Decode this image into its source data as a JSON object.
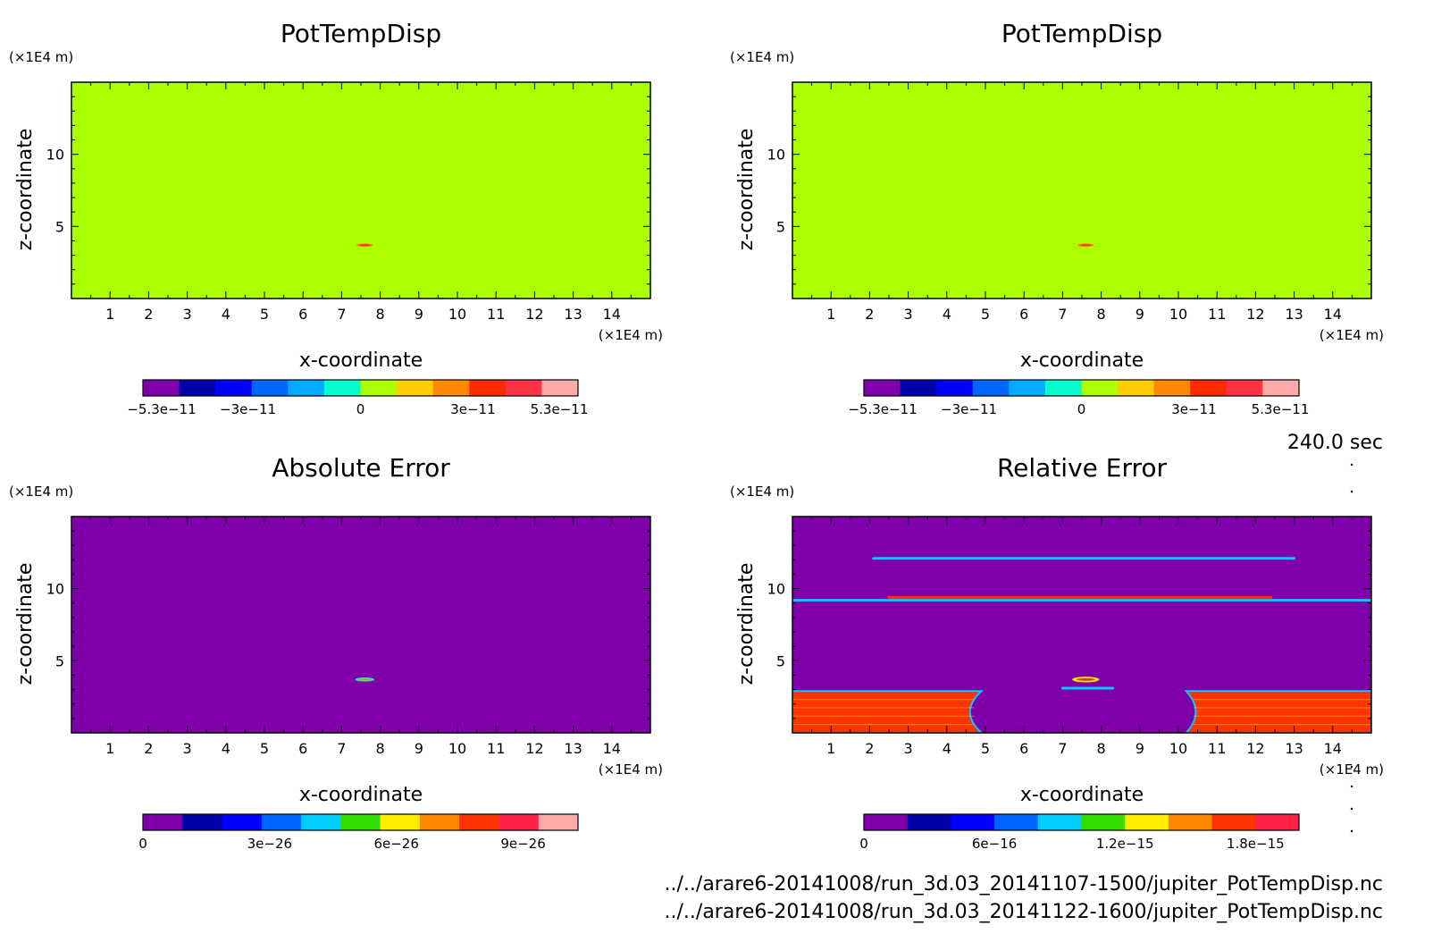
{
  "timestamp": "240.0 sec",
  "files": [
    "../../arare6-20141008/run_3d.03_20141107-1500/jupiter_PotTempDisp.nc",
    "../../arare6-20141008/run_3d.03_20141122-1600/jupiter_PotTempDisp.nc"
  ],
  "chart_data": [
    {
      "type": "heatmap",
      "title": "PotTempDisp",
      "xlabel": "x-coordinate",
      "ylabel": "z-coordinate",
      "x_unit": "(×1E4 m)",
      "y_unit": "(×1E4 m)",
      "xlim": [
        0,
        15
      ],
      "ylim": [
        0,
        15
      ],
      "x_ticks": [
        1,
        2,
        3,
        4,
        5,
        6,
        7,
        8,
        9,
        10,
        11,
        12,
        13,
        14
      ],
      "y_ticks": [
        5,
        10
      ],
      "background": "#aaff00",
      "features": [
        {
          "kind": "blob",
          "x": 7.6,
          "z": 3.7,
          "rx": 0.22,
          "rz": 0.12,
          "outer": "#ff8800",
          "inner": "#ff2a00"
        }
      ],
      "colorbar": {
        "colors": [
          "#7f00aa",
          "#0000aa",
          "#0000ff",
          "#0066ff",
          "#00aaff",
          "#00ffcc",
          "#aaff00",
          "#ffcc00",
          "#ff8800",
          "#ff2a00",
          "#ff3344",
          "#ffaaaa"
        ],
        "ticks": [
          {
            "value": -5.3e-11,
            "label": "−5.3e−11"
          },
          {
            "value": -3e-11,
            "label": "−3e−11"
          },
          {
            "value": 0,
            "label": "0"
          },
          {
            "value": 3e-11,
            "label": "3e−11"
          },
          {
            "value": 5.3e-11,
            "label": "5.3e−11"
          }
        ],
        "range": [
          -5.8e-11,
          5.8e-11
        ]
      }
    },
    {
      "type": "heatmap",
      "title": "PotTempDisp",
      "xlabel": "x-coordinate",
      "ylabel": "z-coordinate",
      "x_unit": "(×1E4 m)",
      "y_unit": "(×1E4 m)",
      "xlim": [
        0,
        15
      ],
      "ylim": [
        0,
        15
      ],
      "x_ticks": [
        1,
        2,
        3,
        4,
        5,
        6,
        7,
        8,
        9,
        10,
        11,
        12,
        13,
        14
      ],
      "y_ticks": [
        5,
        10
      ],
      "background": "#aaff00",
      "features": [
        {
          "kind": "blob",
          "x": 7.6,
          "z": 3.7,
          "rx": 0.22,
          "rz": 0.12,
          "outer": "#ff8800",
          "inner": "#ff2a00"
        }
      ],
      "colorbar": {
        "colors": [
          "#7f00aa",
          "#0000aa",
          "#0000ff",
          "#0066ff",
          "#00aaff",
          "#00ffcc",
          "#aaff00",
          "#ffcc00",
          "#ff8800",
          "#ff2a00",
          "#ff3344",
          "#ffaaaa"
        ],
        "ticks": [
          {
            "value": -5.3e-11,
            "label": "−5.3e−11"
          },
          {
            "value": -3e-11,
            "label": "−3e−11"
          },
          {
            "value": 0,
            "label": "0"
          },
          {
            "value": 3e-11,
            "label": "3e−11"
          },
          {
            "value": 5.3e-11,
            "label": "5.3e−11"
          }
        ],
        "range": [
          -5.8e-11,
          5.8e-11
        ]
      }
    },
    {
      "type": "heatmap",
      "title": "Absolute Error",
      "xlabel": "x-coordinate",
      "ylabel": "z-coordinate",
      "x_unit": "(×1E4 m)",
      "y_unit": "(×1E4 m)",
      "xlim": [
        0,
        15
      ],
      "ylim": [
        0,
        15
      ],
      "x_ticks": [
        1,
        2,
        3,
        4,
        5,
        6,
        7,
        8,
        9,
        10,
        11,
        12,
        13,
        14
      ],
      "y_ticks": [
        5,
        10
      ],
      "background": "#7f00aa",
      "features": [
        {
          "kind": "blob",
          "x": 7.6,
          "z": 3.7,
          "rx": 0.25,
          "rz": 0.14,
          "outer": "#00ffcc",
          "inner": "#ff8800"
        }
      ],
      "colorbar": {
        "colors": [
          "#7f00aa",
          "#0000aa",
          "#0000ff",
          "#0066ff",
          "#00ccff",
          "#33dd00",
          "#ffee00",
          "#ff8800",
          "#ff3300",
          "#ff2244",
          "#ffaaaa"
        ],
        "ticks": [
          {
            "value": 0,
            "label": "0"
          },
          {
            "value": 3e-26,
            "label": "3e−26"
          },
          {
            "value": 6e-26,
            "label": "6e−26"
          },
          {
            "value": 9e-26,
            "label": "9e−26"
          }
        ],
        "range": [
          0,
          1.03e-25
        ]
      }
    },
    {
      "type": "heatmap",
      "title": "Relative Error",
      "xlabel": "x-coordinate",
      "ylabel": "z-coordinate",
      "x_unit": "(×1E4 m)",
      "y_unit": "(×1E4 m)",
      "xlim": [
        0,
        15
      ],
      "ylim": [
        0,
        15
      ],
      "x_ticks": [
        1,
        2,
        3,
        4,
        5,
        6,
        7,
        8,
        9,
        10,
        11,
        12,
        13,
        14
      ],
      "y_ticks": [
        5,
        10
      ],
      "background": "#7f00aa",
      "features": [
        {
          "kind": "line",
          "x1": 2.1,
          "x2": 13.0,
          "z": 12.1,
          "color": "#00ccff"
        },
        {
          "kind": "line",
          "x1": 0,
          "x2": 15,
          "z": 9.2,
          "color": "#00ccff"
        },
        {
          "kind": "line",
          "x1": 2.5,
          "x2": 12.4,
          "z": 9.4,
          "color": "#ff3300"
        },
        {
          "kind": "blob",
          "x": 7.6,
          "z": 3.7,
          "rx": 0.35,
          "rz": 0.2,
          "outer": "#ffee00",
          "inner": "#ff3300"
        },
        {
          "kind": "line",
          "x1": 7.0,
          "x2": 8.3,
          "z": 3.1,
          "color": "#00ccff"
        },
        {
          "kind": "region",
          "side": "left",
          "z_top": 2.9,
          "x_outer": 4.9,
          "x_neck": 4.3,
          "color": "#ff3300"
        },
        {
          "kind": "region",
          "side": "right",
          "z_top": 2.9,
          "x_outer": 10.2,
          "x_neck": 10.7,
          "color": "#ff3300"
        }
      ],
      "colorbar": {
        "colors": [
          "#7f00aa",
          "#0000aa",
          "#0000ff",
          "#0066ff",
          "#00ccff",
          "#33dd00",
          "#ffee00",
          "#ff8800",
          "#ff3300",
          "#ff2244"
        ],
        "ticks": [
          {
            "value": 0,
            "label": "0"
          },
          {
            "value": 6e-16,
            "label": "6e−16"
          },
          {
            "value": 1.2e-15,
            "label": "1.2e−15"
          },
          {
            "value": 1.8e-15,
            "label": "1.8e−15"
          }
        ],
        "range": [
          0,
          2e-15
        ]
      }
    }
  ]
}
